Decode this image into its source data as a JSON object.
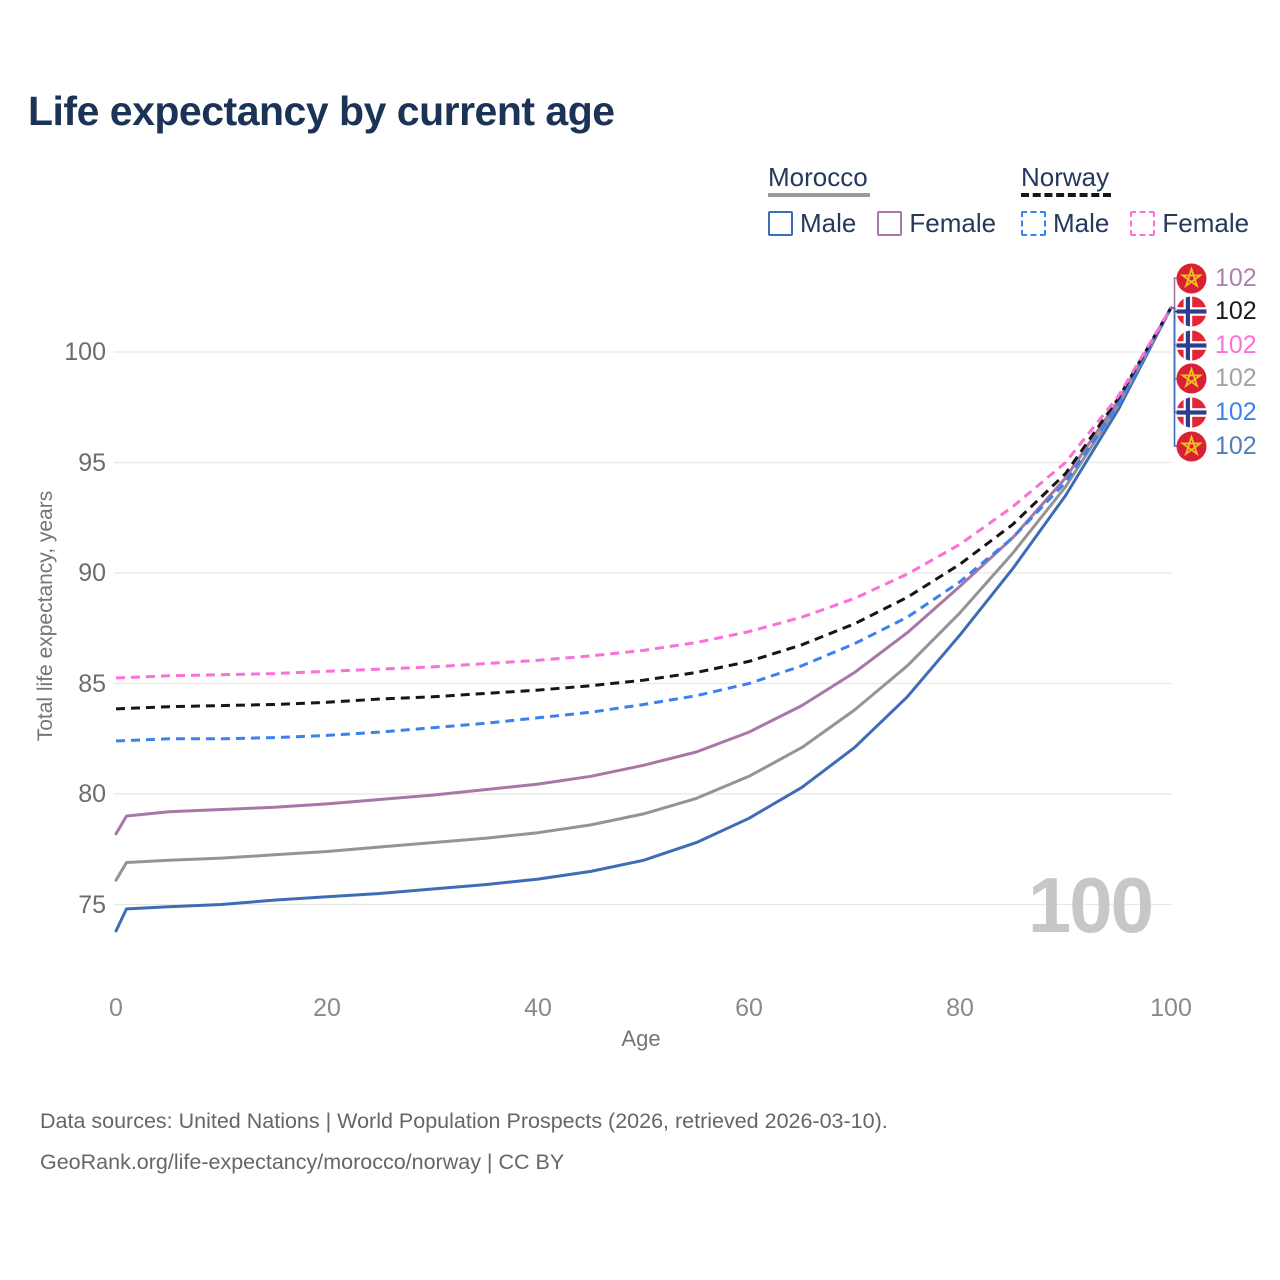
{
  "title": "Life expectancy by current age",
  "legend": {
    "groups": [
      {
        "label": "Morocco",
        "line_style": "solid",
        "underline_color": "#9a9a9a",
        "items": [
          {
            "label": "Male",
            "color": "#3e6db5"
          },
          {
            "label": "Female",
            "color": "#a976a8"
          }
        ]
      },
      {
        "label": "Norway",
        "line_style": "dashed",
        "underline_color": "#161616",
        "items": [
          {
            "label": "Male",
            "color": "#3b82f0"
          },
          {
            "label": "Female",
            "color": "#fb70d8"
          }
        ]
      }
    ]
  },
  "axes": {
    "y_label": "Total life expectancy, years",
    "x_label": "Age",
    "y_ticks": [
      75,
      80,
      85,
      90,
      95,
      100
    ],
    "x_ticks": [
      0,
      20,
      40,
      60,
      80,
      100
    ]
  },
  "watermark": "100",
  "footer": {
    "line1": "Data sources: United Nations | World Population Prospects (2026, retrieved 2026-03-10).",
    "line2": "GeoRank.org/life-expectancy/morocco/norway | CC BY"
  },
  "chart_data": {
    "type": "line",
    "title": "Life expectancy by current age",
    "xlabel": "Age",
    "ylabel": "Total life expectancy, years",
    "xlim": [
      0,
      100
    ],
    "ylim": [
      73,
      103
    ],
    "grid": "horizontal",
    "legend_position": "top-right",
    "series": [
      {
        "id": "morocco-male",
        "country": "Morocco",
        "sex": "Male",
        "color": "#3e6db5",
        "dashed": false,
        "points": [
          [
            0,
            73.8
          ],
          [
            1,
            74.8
          ],
          [
            5,
            74.9
          ],
          [
            10,
            75.0
          ],
          [
            15,
            75.2
          ],
          [
            20,
            75.35
          ],
          [
            25,
            75.5
          ],
          [
            30,
            75.7
          ],
          [
            35,
            75.9
          ],
          [
            40,
            76.15
          ],
          [
            45,
            76.5
          ],
          [
            50,
            77.0
          ],
          [
            55,
            77.8
          ],
          [
            60,
            78.9
          ],
          [
            65,
            80.3
          ],
          [
            70,
            82.1
          ],
          [
            75,
            84.4
          ],
          [
            80,
            87.2
          ],
          [
            85,
            90.2
          ],
          [
            90,
            93.5
          ],
          [
            95,
            97.4
          ],
          [
            100,
            102
          ]
        ]
      },
      {
        "id": "morocco-total",
        "country": "Morocco",
        "sex": "Both sexes",
        "color": "#949494",
        "dashed": false,
        "points": [
          [
            0,
            76.1
          ],
          [
            1,
            76.9
          ],
          [
            5,
            77.0
          ],
          [
            10,
            77.1
          ],
          [
            15,
            77.25
          ],
          [
            20,
            77.4
          ],
          [
            25,
            77.6
          ],
          [
            30,
            77.8
          ],
          [
            35,
            78.0
          ],
          [
            40,
            78.25
          ],
          [
            45,
            78.6
          ],
          [
            50,
            79.1
          ],
          [
            55,
            79.8
          ],
          [
            60,
            80.8
          ],
          [
            65,
            82.1
          ],
          [
            70,
            83.8
          ],
          [
            75,
            85.8
          ],
          [
            80,
            88.2
          ],
          [
            85,
            90.9
          ],
          [
            90,
            93.9
          ],
          [
            95,
            97.6
          ],
          [
            100,
            102
          ]
        ]
      },
      {
        "id": "morocco-female",
        "country": "Morocco",
        "sex": "Female",
        "color": "#a976a8",
        "dashed": false,
        "points": [
          [
            0,
            78.2
          ],
          [
            1,
            79.0
          ],
          [
            5,
            79.2
          ],
          [
            10,
            79.3
          ],
          [
            15,
            79.4
          ],
          [
            20,
            79.55
          ],
          [
            25,
            79.75
          ],
          [
            30,
            79.95
          ],
          [
            35,
            80.2
          ],
          [
            40,
            80.45
          ],
          [
            45,
            80.8
          ],
          [
            50,
            81.3
          ],
          [
            55,
            81.9
          ],
          [
            60,
            82.8
          ],
          [
            65,
            84.0
          ],
          [
            70,
            85.5
          ],
          [
            75,
            87.3
          ],
          [
            80,
            89.4
          ],
          [
            85,
            91.6
          ],
          [
            90,
            94.3
          ],
          [
            95,
            97.8
          ],
          [
            100,
            102
          ]
        ]
      },
      {
        "id": "norway-male",
        "country": "Norway",
        "sex": "Male",
        "color": "#3b82f0",
        "dashed": true,
        "points": [
          [
            0,
            82.4
          ],
          [
            5,
            82.5
          ],
          [
            10,
            82.5
          ],
          [
            15,
            82.55
          ],
          [
            20,
            82.65
          ],
          [
            25,
            82.8
          ],
          [
            30,
            83.0
          ],
          [
            35,
            83.2
          ],
          [
            40,
            83.45
          ],
          [
            45,
            83.7
          ],
          [
            50,
            84.05
          ],
          [
            55,
            84.45
          ],
          [
            60,
            85.0
          ],
          [
            65,
            85.8
          ],
          [
            70,
            86.8
          ],
          [
            75,
            88.0
          ],
          [
            80,
            89.6
          ],
          [
            85,
            91.6
          ],
          [
            90,
            94.1
          ],
          [
            95,
            97.6
          ],
          [
            100,
            102
          ]
        ]
      },
      {
        "id": "norway-total",
        "country": "Norway",
        "sex": "Both sexes",
        "color": "#161616",
        "dashed": true,
        "points": [
          [
            0,
            83.85
          ],
          [
            5,
            83.95
          ],
          [
            10,
            84.0
          ],
          [
            15,
            84.05
          ],
          [
            20,
            84.15
          ],
          [
            25,
            84.3
          ],
          [
            30,
            84.4
          ],
          [
            35,
            84.55
          ],
          [
            40,
            84.7
          ],
          [
            45,
            84.9
          ],
          [
            50,
            85.15
          ],
          [
            55,
            85.5
          ],
          [
            60,
            86.0
          ],
          [
            65,
            86.75
          ],
          [
            70,
            87.7
          ],
          [
            75,
            88.9
          ],
          [
            80,
            90.4
          ],
          [
            85,
            92.2
          ],
          [
            90,
            94.5
          ],
          [
            95,
            97.9
          ],
          [
            100,
            102
          ]
        ]
      },
      {
        "id": "norway-female",
        "country": "Norway",
        "sex": "Female",
        "color": "#fb70d8",
        "dashed": true,
        "points": [
          [
            0,
            85.25
          ],
          [
            5,
            85.35
          ],
          [
            10,
            85.4
          ],
          [
            15,
            85.45
          ],
          [
            20,
            85.55
          ],
          [
            25,
            85.65
          ],
          [
            30,
            85.75
          ],
          [
            35,
            85.9
          ],
          [
            40,
            86.05
          ],
          [
            45,
            86.25
          ],
          [
            50,
            86.5
          ],
          [
            55,
            86.85
          ],
          [
            60,
            87.35
          ],
          [
            65,
            88.0
          ],
          [
            70,
            88.85
          ],
          [
            75,
            89.95
          ],
          [
            80,
            91.3
          ],
          [
            85,
            93.0
          ],
          [
            90,
            95.0
          ],
          [
            95,
            98.0
          ],
          [
            100,
            102
          ]
        ]
      }
    ],
    "end_labels": [
      {
        "country": "Morocco",
        "flag": "morocco",
        "series": "morocco-female",
        "value": "102",
        "color": "#b07fae"
      },
      {
        "country": "Norway",
        "flag": "norway",
        "series": "norway-total",
        "value": "102",
        "color": "#1a1a1a"
      },
      {
        "country": "Norway",
        "flag": "norway",
        "series": "norway-female",
        "value": "102",
        "color": "#fb70d8"
      },
      {
        "country": "Morocco",
        "flag": "morocco",
        "series": "morocco-total",
        "value": "102",
        "color": "#a3a3a3"
      },
      {
        "country": "Norway",
        "flag": "norway",
        "series": "norway-male",
        "value": "102",
        "color": "#3b82f0"
      },
      {
        "country": "Morocco",
        "flag": "morocco",
        "series": "morocco-male",
        "value": "102",
        "color": "#4e7ec0"
      }
    ]
  }
}
